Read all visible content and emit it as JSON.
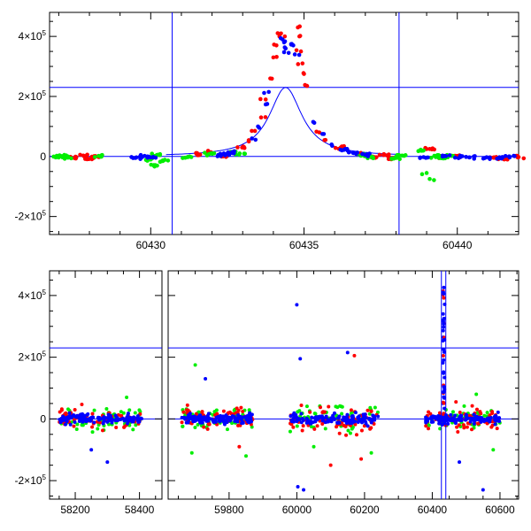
{
  "colors": {
    "red": "#ff0000",
    "green": "#00ee00",
    "blue": "#0000ff",
    "model": "#0000ff",
    "frame": "#000000"
  },
  "chart_data": [
    {
      "type": "scatter",
      "title": "",
      "xlabel": "",
      "ylabel": "",
      "xlim": [
        60426.7,
        60442
      ],
      "ylim": [
        -260000,
        480000
      ],
      "x_ticks": [
        60430,
        60435,
        60440
      ],
      "x_tick_labels": [
        "60430",
        "60435",
        "60440"
      ],
      "y_ticks": [
        -200000,
        0,
        200000,
        400000
      ],
      "y_tick_labels": [
        [
          "-2×10",
          "5"
        ],
        [
          "0",
          ""
        ],
        [
          "2×10",
          "5"
        ],
        [
          "4×10",
          "5"
        ]
      ],
      "hlines": [
        0,
        230000
      ],
      "vlines": [
        60430.7,
        60438.1
      ],
      "model_curve": {
        "peak_x": 60434.4,
        "peak_y": 230000,
        "width": 0.65
      },
      "series": [
        {
          "color": "red",
          "points": [
            [
              60427.5,
              -5000
            ],
            [
              60427.8,
              3000
            ],
            [
              60428.0,
              -8000
            ],
            [
              60428.2,
              1000
            ],
            [
              60431.5,
              8000
            ],
            [
              60431.9,
              15000
            ],
            [
              60432.4,
              3000
            ],
            [
              60433.0,
              30000
            ],
            [
              60433.2,
              50000
            ],
            [
              60433.4,
              85000
            ],
            [
              60433.6,
              130000
            ],
            [
              60433.75,
              190000
            ],
            [
              60433.9,
              260000
            ],
            [
              60434.0,
              330000
            ],
            [
              60434.1,
              370000
            ],
            [
              60434.2,
              400000
            ],
            [
              60434.25,
              410000
            ],
            [
              60434.8,
              430000
            ],
            [
              60434.85,
              400000
            ],
            [
              60434.9,
              350000
            ],
            [
              60434.95,
              310000
            ],
            [
              60435.0,
              275000
            ],
            [
              60435.1,
              235000
            ],
            [
              60435.5,
              80000
            ],
            [
              60435.7,
              55000
            ],
            [
              60436.2,
              30000
            ],
            [
              60436.8,
              8000
            ],
            [
              60437.3,
              -2000
            ],
            [
              60437.6,
              5000
            ],
            [
              60437.9,
              -5000
            ],
            [
              60439.1,
              25000
            ],
            [
              60439.5,
              -3000
            ],
            [
              60440.0,
              2000
            ],
            [
              60441.2,
              -3000
            ],
            [
              60441.5,
              -8000
            ],
            [
              60442.0,
              -2000
            ]
          ]
        },
        {
          "color": "green",
          "points": [
            [
              60426.9,
              -3000
            ],
            [
              60427.1,
              1000
            ],
            [
              60427.3,
              -4000
            ],
            [
              60428.3,
              2000
            ],
            [
              60430.0,
              -10000
            ],
            [
              60430.1,
              -30000
            ],
            [
              60430.2,
              5000
            ],
            [
              60430.4,
              -15000
            ],
            [
              60431.2,
              -2000
            ],
            [
              60431.9,
              8000
            ],
            [
              60432.6,
              15000
            ],
            [
              60432.9,
              10000
            ],
            [
              60436.9,
              5000
            ],
            [
              60437.2,
              -2000
            ],
            [
              60438.0,
              -5000
            ],
            [
              60438.2,
              3000
            ],
            [
              60438.9,
              20000
            ],
            [
              60439.0,
              -55000
            ],
            [
              60439.1,
              -75000
            ],
            [
              60439.3,
              -2000
            ],
            [
              60439.4,
              3000
            ],
            [
              60439.6,
              -6000
            ],
            [
              60439.7,
              2000
            ]
          ]
        },
        {
          "color": "blue",
          "points": [
            [
              60429.5,
              -5000
            ],
            [
              60429.8,
              2000
            ],
            [
              60430.0,
              -3000
            ],
            [
              60432.2,
              5000
            ],
            [
              60432.4,
              8000
            ],
            [
              60432.7,
              15000
            ],
            [
              60433.3,
              60000
            ],
            [
              60433.5,
              100000
            ],
            [
              60433.8,
              175000
            ],
            [
              60433.85,
              215000
            ],
            [
              60434.3,
              390000
            ],
            [
              60434.35,
              380000
            ],
            [
              60434.4,
              360000
            ],
            [
              60434.5,
              345000
            ],
            [
              60434.6,
              375000
            ],
            [
              60434.65,
              370000
            ],
            [
              60434.7,
              340000
            ],
            [
              60435.3,
              115000
            ],
            [
              60435.6,
              75000
            ],
            [
              60435.9,
              40000
            ],
            [
              60436.3,
              22000
            ],
            [
              60436.6,
              12000
            ],
            [
              60437.0,
              5000
            ],
            [
              60438.9,
              -2000
            ],
            [
              60439.6,
              2000
            ],
            [
              60440.1,
              -2000
            ],
            [
              60440.4,
              -3000
            ],
            [
              60440.9,
              -5000
            ],
            [
              60441.4,
              -6000
            ],
            [
              60441.7,
              0
            ]
          ]
        }
      ]
    },
    {
      "type": "scatter",
      "title": "",
      "xlabel": "",
      "ylabel": "",
      "segments": [
        {
          "xlim": [
            58120,
            58470
          ],
          "x_ticks": [
            58200,
            58400
          ]
        },
        {
          "xlim": [
            59620,
            60655
          ],
          "x_ticks": [
            59800,
            60000,
            60200,
            60400,
            60600
          ]
        }
      ],
      "x_tick_labels": [
        "58200",
        "58400",
        "59800",
        "60000",
        "60200",
        "60400",
        "60600"
      ],
      "ylim": [
        -260000,
        480000
      ],
      "y_ticks": [
        -200000,
        0,
        200000,
        400000
      ],
      "y_tick_labels": [
        [
          "-2×10",
          "5"
        ],
        [
          "0",
          ""
        ],
        [
          "2×10",
          "5"
        ],
        [
          "4×10",
          "5"
        ]
      ],
      "hlines": [
        0,
        230000
      ],
      "vlines": [
        60427,
        60440
      ],
      "seasons": [
        {
          "range": [
            58150,
            58410
          ],
          "spread": 30000
        },
        {
          "range": [
            59660,
            59870
          ],
          "spread": 32000
        },
        {
          "range": [
            59980,
            60240
          ],
          "spread": 38000
        },
        {
          "range": [
            60380,
            60600
          ],
          "spread": 30000
        }
      ],
      "outliers": [
        [
          58250,
          -100000,
          "blue"
        ],
        [
          58300,
          -140000,
          "blue"
        ],
        [
          58360,
          70000,
          "green"
        ],
        [
          59700,
          175000,
          "green"
        ],
        [
          59730,
          130000,
          "blue"
        ],
        [
          59690,
          -110000,
          "green"
        ],
        [
          59850,
          -120000,
          "green"
        ],
        [
          59830,
          -90000,
          "red"
        ],
        [
          60000,
          370000,
          "blue"
        ],
        [
          60010,
          195000,
          "blue"
        ],
        [
          60003,
          -220000,
          "blue"
        ],
        [
          60020,
          -230000,
          "blue"
        ],
        [
          60150,
          215000,
          "blue"
        ],
        [
          60170,
          205000,
          "red"
        ],
        [
          60100,
          -150000,
          "red"
        ],
        [
          60190,
          -130000,
          "red"
        ],
        [
          60220,
          -110000,
          "green"
        ],
        [
          60050,
          -90000,
          "green"
        ],
        [
          60480,
          -140000,
          "blue"
        ],
        [
          60550,
          -230000,
          "blue"
        ],
        [
          60580,
          -100000,
          "green"
        ],
        [
          60530,
          80000,
          "green"
        ],
        [
          60470,
          55000,
          "red"
        ]
      ],
      "flare_x": 60434,
      "flare_peak": 430000
    }
  ]
}
